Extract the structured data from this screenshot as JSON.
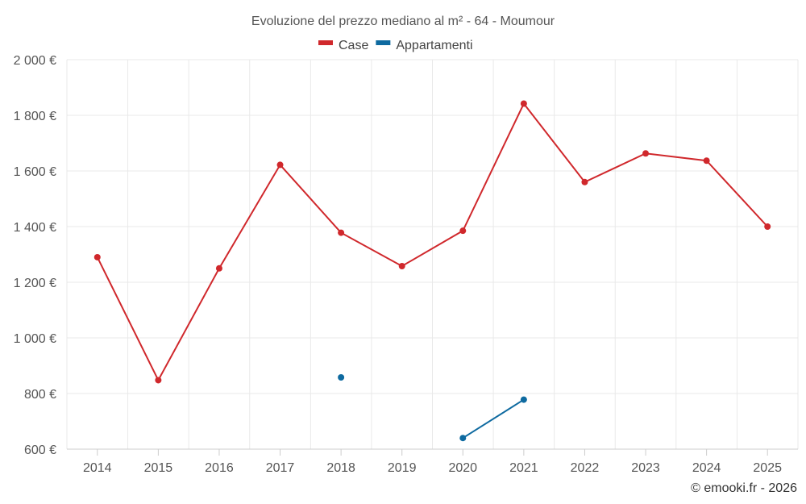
{
  "chart_data": {
    "type": "line",
    "title": "Evoluzione del prezzo mediano al m² - 64 - Moumour",
    "xlabel": "",
    "ylabel": "",
    "categories": [
      "2014",
      "2015",
      "2016",
      "2017",
      "2018",
      "2019",
      "2020",
      "2021",
      "2022",
      "2023",
      "2024",
      "2025"
    ],
    "ylim": [
      600,
      2000
    ],
    "yticks": [
      600,
      800,
      1000,
      1200,
      1400,
      1600,
      1800,
      2000
    ],
    "ytick_labels": [
      "600 €",
      "800 €",
      "1 000 €",
      "1 200 €",
      "1 400 €",
      "1 600 €",
      "1 800 €",
      "2 000 €"
    ],
    "grid": true,
    "legend_position": "top-center",
    "series": [
      {
        "name": "Case",
        "color": "#d0282c",
        "values": [
          1290,
          848,
          1250,
          1622,
          1378,
          1258,
          1385,
          1842,
          1560,
          1663,
          1637,
          1400
        ]
      },
      {
        "name": "Appartamenti",
        "color": "#0e6aa0",
        "values": [
          null,
          null,
          null,
          null,
          858,
          null,
          640,
          778,
          null,
          null,
          null,
          null
        ]
      }
    ],
    "credit": "© emooki.fr - 2026"
  }
}
